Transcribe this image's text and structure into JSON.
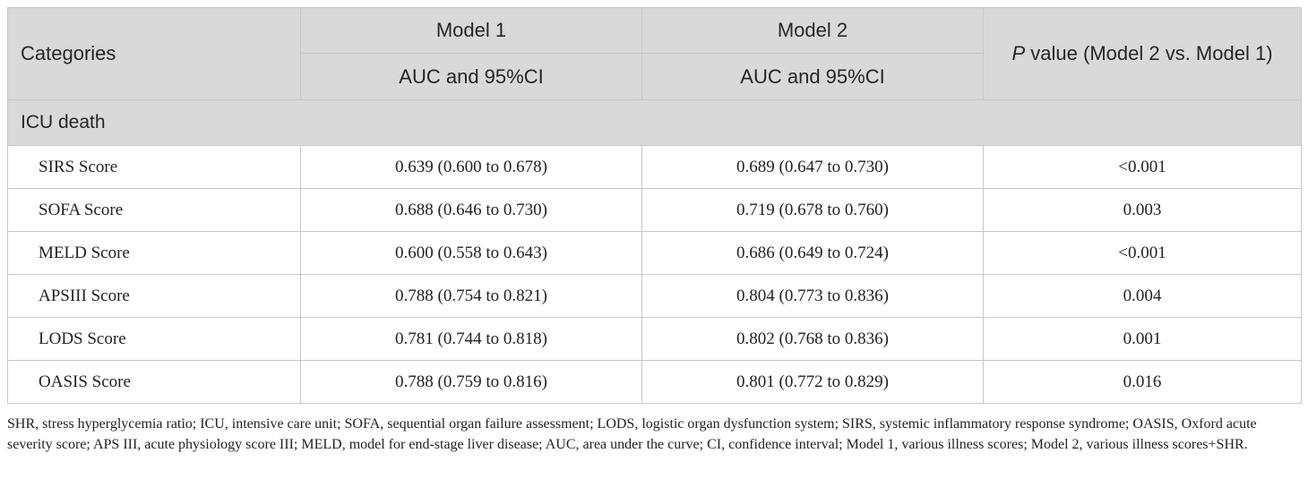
{
  "header": {
    "categories": "Categories",
    "model1": "Model 1",
    "model2": "Model 2",
    "auc1": "AUC and 95%CI",
    "auc2": "AUC and 95%CI",
    "p_italic": "P",
    "p_rest": " value (Model 2 vs. Model 1)"
  },
  "section": {
    "label": "ICU death"
  },
  "rows": [
    {
      "label": "SIRS Score",
      "m1": "0.639 (0.600 to 0.678)",
      "m2": "0.689 (0.647 to 0.730)",
      "p": "<0.001"
    },
    {
      "label": "SOFA Score",
      "m1": "0.688 (0.646 to 0.730)",
      "m2": "0.719 (0.678 to 0.760)",
      "p": "0.003"
    },
    {
      "label": "MELD Score",
      "m1": "0.600 (0.558 to 0.643)",
      "m2": "0.686 (0.649 to 0.724)",
      "p": "<0.001"
    },
    {
      "label": "APSIII Score",
      "m1": "0.788 (0.754 to 0.821)",
      "m2": "0.804 (0.773 to 0.836)",
      "p": "0.004"
    },
    {
      "label": "LODS Score",
      "m1": "0.781 (0.744 to 0.818)",
      "m2": "0.802 (0.768 to 0.836)",
      "p": "0.001"
    },
    {
      "label": "OASIS Score",
      "m1": "0.788 (0.759 to 0.816)",
      "m2": "0.801 (0.772 to 0.829)",
      "p": "0.016"
    }
  ],
  "footnote": "SHR, stress hyperglycemia ratio; ICU, intensive care unit; SOFA, sequential organ failure assessment; LODS, logistic organ dysfunction system; SIRS, systemic inflammatory response syndrome; OASIS, Oxford acute severity score; APS III, acute physiology score III; MELD, model for end-stage liver disease; AUC, area under the curve; CI, confidence interval; Model 1, various illness scores; Model 2, various illness scores+SHR."
}
